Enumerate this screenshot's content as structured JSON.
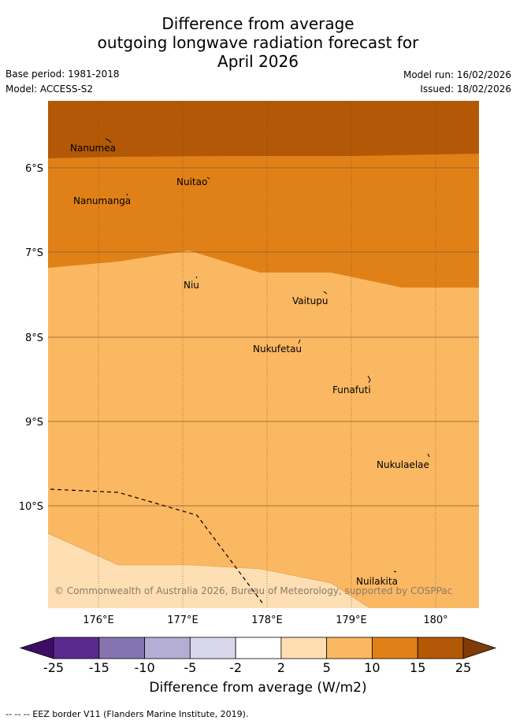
{
  "title": [
    "Difference from average",
    "outgoing longwave radiation forecast for",
    "April 2026"
  ],
  "base_period": "Base period: 1981-2018",
  "model": "Model: ACCESS-S2",
  "model_run": "Model run: 16/02/2026",
  "issued": "Issued: 18/02/2026",
  "copyright": "© Commonwealth of Australia 2026, Bureau of Meteorology, supported by COSPPac",
  "lon_labels": [
    "176°E",
    "177°E",
    "178°E",
    "179°E",
    "180°"
  ],
  "lat_labels": [
    "6°S",
    "7°S",
    "8°S",
    "9°S",
    "10°S"
  ],
  "islands": [
    "Nanumea",
    "Nuitao",
    "Nanumanga",
    "Niu",
    "Vaitupu",
    "Nukufetau",
    "Funafuti",
    "Nukulaelae",
    "Nuilakita"
  ],
  "colorbar": {
    "ticks": [
      "-25",
      "-15",
      "-10",
      "-5",
      "-2",
      "2",
      "5",
      "10",
      "15",
      "25"
    ],
    "colors": [
      "#3e0d66",
      "#5b2a8e",
      "#8574b0",
      "#b4aed4",
      "#d9d8ea",
      "#ffffff",
      "#fedfb3",
      "#fbb862",
      "#e08118",
      "#b35806",
      "#7f3b08"
    ],
    "label": "Difference from average (W/m2)"
  },
  "legend_note": "--  --  -- EEZ border V11 (Flanders Marine Institute, 2019)."
}
